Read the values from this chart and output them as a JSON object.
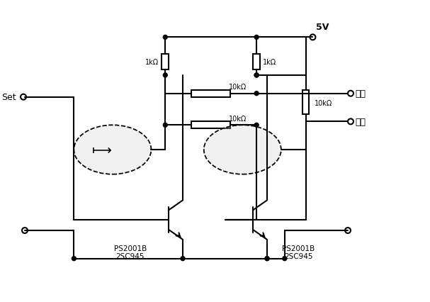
{
  "title": "",
  "bg_color": "#ffffff",
  "line_color": "#000000",
  "resistor_color": "#000000",
  "text_color": "#000000",
  "labels": {
    "set": "Set",
    "vcc": "5V",
    "r1": "1kΩ",
    "r2": "1kΩ",
    "r3": "10kΩ",
    "r4": "10kΩ",
    "r5": "10kΩ",
    "out": "输出",
    "reset": "复位",
    "q1": "PS2001B\n2SC945",
    "q2": "PS2001B\n2SC945"
  }
}
